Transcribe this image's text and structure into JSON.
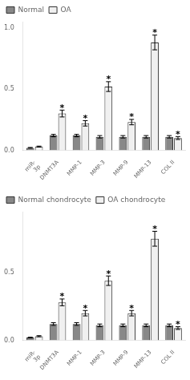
{
  "chart_data": [
    {
      "type": "bar",
      "categories": [
        "miR-\n3p",
        "DNMT3A",
        "MMP-1",
        "MMP-3",
        "MMP-9",
        "MMP-13",
        "COL II"
      ],
      "series": [
        {
          "name": "Normal",
          "color": "#888888",
          "values": [
            0.02,
            0.12,
            0.12,
            0.11,
            0.11,
            0.11,
            0.11
          ],
          "errors": [
            0.003,
            0.01,
            0.01,
            0.01,
            0.01,
            0.01,
            0.01
          ]
        },
        {
          "name": "OA",
          "color": "#f0f0f0",
          "values": [
            0.03,
            0.3,
            0.22,
            0.52,
            0.23,
            0.88,
            0.1
          ],
          "errors": [
            0.004,
            0.028,
            0.022,
            0.04,
            0.022,
            0.06,
            0.012
          ]
        }
      ],
      "ylim": [
        0,
        1.05
      ],
      "yticks": [
        {
          "value": 0,
          "label": "0.0"
        },
        0.5,
        {
          "value": 1,
          "label": "1.0"
        }
      ],
      "grid": false,
      "legend": "upper left",
      "annotations": [
        {
          "text": "*",
          "category": "DNMT3A",
          "series": "OA"
        },
        {
          "text": "*",
          "category": "MMP-1",
          "series": "OA"
        },
        {
          "text": "*",
          "category": "MMP-3",
          "series": "OA"
        },
        {
          "text": "*",
          "category": "MMP-9",
          "series": "OA"
        },
        {
          "text": "*",
          "category": "MMP-13",
          "series": "OA"
        },
        {
          "text": "*",
          "category": "COL II",
          "series": "OA"
        }
      ]
    },
    {
      "type": "bar",
      "categories": [
        "miR-\n3p",
        "DNMT3A",
        "MMP-1",
        "MMP-3",
        "MMP-9",
        "MMP-13",
        "COL II"
      ],
      "series": [
        {
          "name": "Normal chondrocyte",
          "color": "#888888",
          "values": [
            0.02,
            0.12,
            0.12,
            0.11,
            0.11,
            0.11,
            0.11
          ],
          "errors": [
            0.003,
            0.01,
            0.01,
            0.01,
            0.01,
            0.01,
            0.01
          ]
        },
        {
          "name": "OA chondrocyte",
          "color": "#f0f0f0",
          "values": [
            0.03,
            0.28,
            0.2,
            0.44,
            0.2,
            0.75,
            0.09
          ],
          "errors": [
            0.004,
            0.025,
            0.02,
            0.035,
            0.02,
            0.055,
            0.01
          ]
        }
      ],
      "ylim": [
        0,
        0.95
      ],
      "yticks": [
        {
          "value": 0,
          "label": "0.0"
        },
        0.5
      ],
      "grid": false,
      "legend": "upper left",
      "annotations": [
        {
          "text": "*",
          "category": "DNMT3A",
          "series": "OA chondrocyte"
        },
        {
          "text": "*",
          "category": "MMP-1",
          "series": "OA chondrocyte"
        },
        {
          "text": "*",
          "category": "MMP-3",
          "series": "OA chondrocyte"
        },
        {
          "text": "*",
          "category": "MMP-9",
          "series": "OA chondrocyte"
        },
        {
          "text": "*",
          "category": "MMP-13",
          "series": "OA chondrocyte"
        },
        {
          "text": "*",
          "category": "COL II",
          "series": "OA chondrocyte"
        }
      ]
    }
  ]
}
